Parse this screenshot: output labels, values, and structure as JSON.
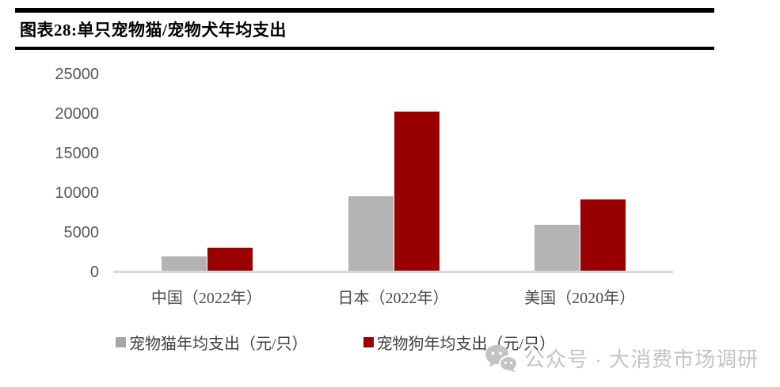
{
  "title": "图表28:单只宠物猫/宠物犬年均支出",
  "chart_data": {
    "type": "bar",
    "title": "图表28:单只宠物猫/宠物犬年均支出",
    "categories": [
      "中国（2022年）",
      "日本（2022年）",
      "美国（2020年）"
    ],
    "series": [
      {
        "name": "宠物猫年均支出（元/只）",
        "color": "#a6a6a6",
        "bar_color": "#b3b3b3",
        "values": [
          1800,
          9400,
          5800
        ]
      },
      {
        "name": "宠物狗年均支出（元/只）",
        "color": "#990000",
        "bar_color": "#990000",
        "values": [
          2900,
          20100,
          9000
        ]
      }
    ],
    "xlabel": "",
    "ylabel": "",
    "ylim": [
      0,
      25000
    ],
    "yticks": [
      0,
      5000,
      10000,
      15000,
      20000,
      25000
    ],
    "grid": false,
    "legend_position": "bottom",
    "axis_label_color": "#595959",
    "baseline_color": "#d9d9d9"
  },
  "watermark": {
    "icon": "wechat-icon",
    "text": "公众号 · 大消费市场调研",
    "color": "#c4c4c4"
  }
}
